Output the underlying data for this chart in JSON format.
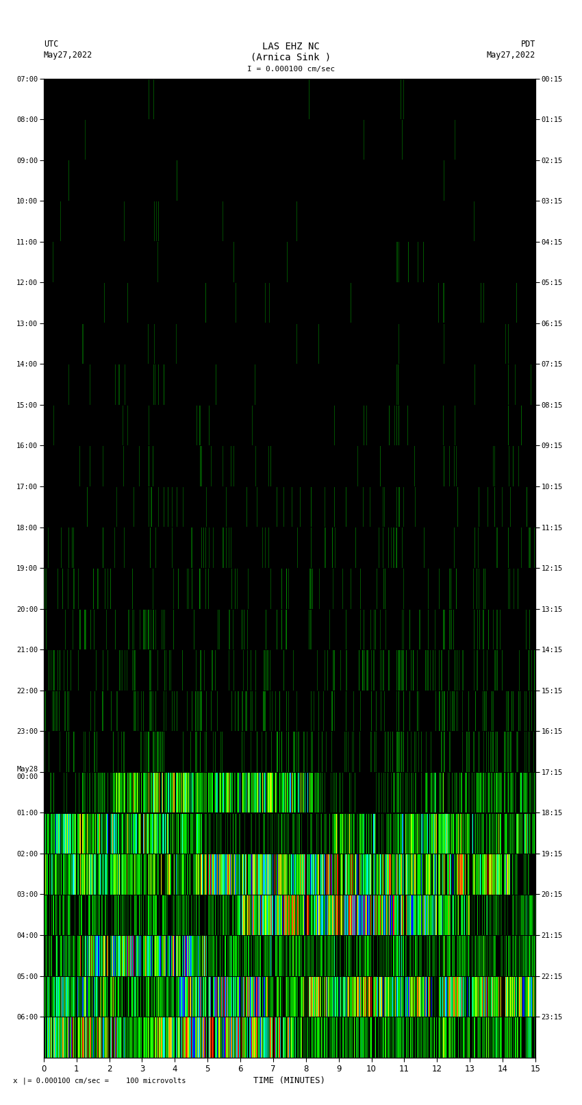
{
  "title_line1": "LAS EHZ NC",
  "title_line2": "(Arnica Sink )",
  "scale_label": "I = 0.000100 cm/sec",
  "left_label_top": "UTC",
  "left_label_date": "May27,2022",
  "right_label_top": "PDT",
  "right_label_date": "May27,2022",
  "bottom_label": "TIME (MINUTES)",
  "footer_text": "= 0.000100 cm/sec =    100 microvolts",
  "utc_times": [
    "07:00",
    "08:00",
    "09:00",
    "10:00",
    "11:00",
    "12:00",
    "13:00",
    "14:00",
    "15:00",
    "16:00",
    "17:00",
    "18:00",
    "19:00",
    "20:00",
    "21:00",
    "22:00",
    "23:00",
    "May28\n00:00",
    "01:00",
    "02:00",
    "03:00",
    "04:00",
    "05:00",
    "06:00"
  ],
  "pdt_times": [
    "00:15",
    "01:15",
    "02:15",
    "03:15",
    "04:15",
    "05:15",
    "06:15",
    "07:15",
    "08:15",
    "09:15",
    "10:15",
    "11:15",
    "12:15",
    "13:15",
    "14:15",
    "15:15",
    "16:15",
    "17:15",
    "18:15",
    "19:15",
    "20:15",
    "21:15",
    "22:15",
    "23:15"
  ],
  "x_ticks": [
    0,
    1,
    2,
    3,
    4,
    5,
    6,
    7,
    8,
    9,
    10,
    11,
    12,
    13,
    14,
    15
  ],
  "fig_background": "#ffffff",
  "num_rows": 24,
  "seed": 12345
}
